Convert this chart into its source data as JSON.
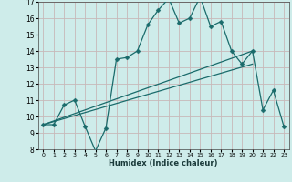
{
  "xlabel": "Humidex (Indice chaleur)",
  "xlim": [
    -0.5,
    23.5
  ],
  "ylim": [
    8,
    17
  ],
  "xticks": [
    0,
    1,
    2,
    3,
    4,
    5,
    6,
    7,
    8,
    9,
    10,
    11,
    12,
    13,
    14,
    15,
    16,
    17,
    18,
    19,
    20,
    21,
    22,
    23
  ],
  "yticks": [
    8,
    9,
    10,
    11,
    12,
    13,
    14,
    15,
    16,
    17
  ],
  "bg_color": "#ceecea",
  "grid_color": "#c8b8b8",
  "line_color": "#1a6b6b",
  "curve_x": [
    0,
    1,
    2,
    3,
    4,
    5,
    6,
    7,
    8,
    9,
    10,
    11,
    12,
    13,
    14,
    15,
    16,
    17,
    18,
    19,
    20,
    21,
    22,
    23
  ],
  "curve_y": [
    9.5,
    9.5,
    10.7,
    11.0,
    9.4,
    7.9,
    9.3,
    13.5,
    13.6,
    14.0,
    15.6,
    16.5,
    17.2,
    15.7,
    16.0,
    17.3,
    15.5,
    15.8,
    14.0,
    13.2,
    14.0,
    10.4,
    11.6,
    9.4
  ],
  "line1_x": [
    0,
    20
  ],
  "line1_y": [
    9.5,
    13.2
  ],
  "line2_x": [
    0,
    20
  ],
  "line2_y": [
    9.5,
    14.0
  ],
  "marker_size": 2.5,
  "linewidth": 0.9
}
